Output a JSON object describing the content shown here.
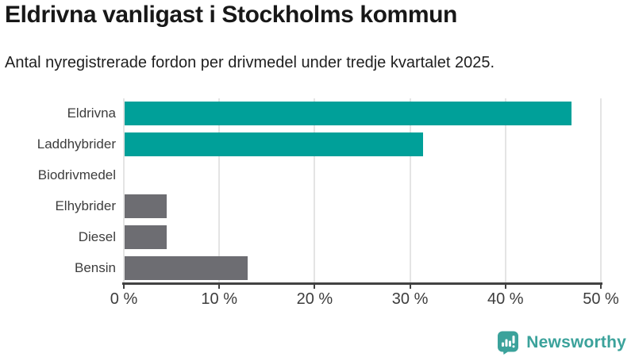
{
  "header": {
    "title": "Eldrivna vanligast i Stockholms kommun",
    "subtitle": "Antal nyregistrerade fordon per drivmedel under tredje kvartalet 2025."
  },
  "chart_data": {
    "type": "bar",
    "orientation": "horizontal",
    "title": "Eldrivna vanligast i Stockholms kommun",
    "subtitle": "Antal nyregistrerade fordon per drivmedel under tredje kvartalet 2025.",
    "categories": [
      "Eldrivna",
      "Laddhybrider",
      "Biodrivmedel",
      "Elhybrider",
      "Diesel",
      "Bensin"
    ],
    "values": [
      46.8,
      31.3,
      0,
      4.4,
      4.4,
      12.9
    ],
    "unit": "%",
    "xlabel": "",
    "ylabel": "",
    "xlim": [
      0,
      50
    ],
    "tick_values": [
      0,
      10,
      20,
      30,
      40,
      50
    ],
    "tick_labels": [
      "0 %",
      "10 %",
      "20 %",
      "30 %",
      "40 %",
      "50 %"
    ],
    "grid": true,
    "legend": false,
    "bar_colors": [
      "#00a099",
      "#00a099",
      "#6d6d72",
      "#6d6d72",
      "#6d6d72",
      "#6d6d72"
    ],
    "colors": {
      "teal": "#00a099",
      "gray": "#6d6d72",
      "gridline": "#e4e4e4",
      "axis": "#424242",
      "tick_text": "#3d3d3d"
    }
  },
  "footer": {
    "brand": "Newsworthy",
    "brand_color": "#3ba29b",
    "logo_icon": "speech-bubble-bar-chart-exclamation"
  }
}
